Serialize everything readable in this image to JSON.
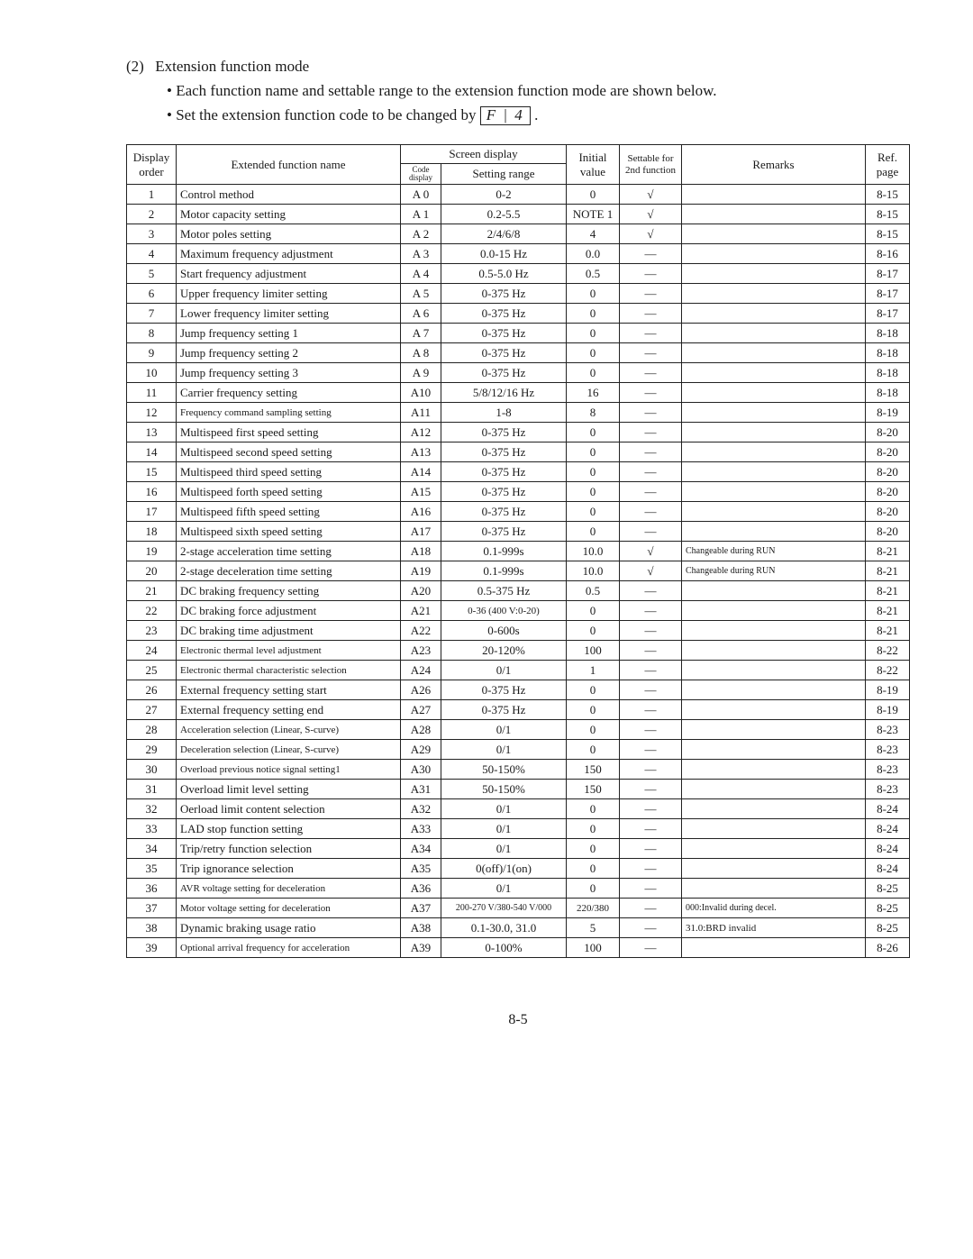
{
  "intro": {
    "heading_num": "(2)",
    "heading_text": "Extension function mode",
    "line1": "Each function name and settable range to the extension function mode are shown below.",
    "line2a": "Set the extension function code to be changed by",
    "codebox": "F | 4",
    "line2b": "."
  },
  "headers": {
    "display": "Display order",
    "name": "Extended function name",
    "screen": "Screen display",
    "code": "Code display",
    "range": "Setting range",
    "initial": "Initial value",
    "settable": "Settable for 2nd function",
    "remarks": "Remarks",
    "ref": "Ref. page"
  },
  "rows": [
    {
      "n": "1",
      "name": "Control method",
      "code": "A 0",
      "range": "0-2",
      "init": "0",
      "set": "√",
      "rem": "",
      "ref": "8-15"
    },
    {
      "n": "2",
      "name": "Motor capacity setting",
      "code": "A 1",
      "range": "0.2-5.5",
      "init": "NOTE 1",
      "set": "√",
      "rem": "",
      "ref": "8-15"
    },
    {
      "n": "3",
      "name": "Motor poles setting",
      "code": "A 2",
      "range": "2/4/6/8",
      "init": "4",
      "set": "√",
      "rem": "",
      "ref": "8-15"
    },
    {
      "n": "4",
      "name": "Maximum frequency adjustment",
      "code": "A 3",
      "range": "0.0-15 Hz",
      "init": "0.0",
      "set": "—",
      "rem": "",
      "ref": "8-16"
    },
    {
      "n": "5",
      "name": "Start frequency adjustment",
      "code": "A 4",
      "range": "0.5-5.0 Hz",
      "init": "0.5",
      "set": "—",
      "rem": "",
      "ref": "8-17"
    },
    {
      "n": "6",
      "name": "Upper frequency limiter setting",
      "code": "A 5",
      "range": "0-375 Hz",
      "init": "0",
      "set": "—",
      "rem": "",
      "ref": "8-17"
    },
    {
      "n": "7",
      "name": "Lower frequency limiter setting",
      "code": "A 6",
      "range": "0-375 Hz",
      "init": "0",
      "set": "—",
      "rem": "",
      "ref": "8-17"
    },
    {
      "n": "8",
      "name": "Jump frequency setting 1",
      "code": "A 7",
      "range": "0-375 Hz",
      "init": "0",
      "set": "—",
      "rem": "",
      "ref": "8-18"
    },
    {
      "n": "9",
      "name": "Jump frequency setting 2",
      "code": "A 8",
      "range": "0-375 Hz",
      "init": "0",
      "set": "—",
      "rem": "",
      "ref": "8-18"
    },
    {
      "n": "10",
      "name": "Jump frequency setting 3",
      "code": "A 9",
      "range": "0-375 Hz",
      "init": "0",
      "set": "—",
      "rem": "",
      "ref": "8-18"
    },
    {
      "n": "11",
      "name": "Carrier frequency setting",
      "code": "A10",
      "range": "5/8/12/16 Hz",
      "init": "16",
      "set": "—",
      "rem": "",
      "ref": "8-18"
    },
    {
      "n": "12",
      "name": "Frequency command sampling setting",
      "code": "A11",
      "range": "1-8",
      "init": "8",
      "set": "—",
      "rem": "",
      "ref": "8-19",
      "nameClass": "small"
    },
    {
      "n": "13",
      "name": "Multispeed first speed setting",
      "code": "A12",
      "range": "0-375 Hz",
      "init": "0",
      "set": "—",
      "rem": "",
      "ref": "8-20"
    },
    {
      "n": "14",
      "name": "Multispeed second speed setting",
      "code": "A13",
      "range": "0-375 Hz",
      "init": "0",
      "set": "—",
      "rem": "",
      "ref": "8-20"
    },
    {
      "n": "15",
      "name": "Multispeed third speed setting",
      "code": "A14",
      "range": "0-375 Hz",
      "init": "0",
      "set": "—",
      "rem": "",
      "ref": "8-20"
    },
    {
      "n": "16",
      "name": "Multispeed forth speed setting",
      "code": "A15",
      "range": "0-375 Hz",
      "init": "0",
      "set": "—",
      "rem": "",
      "ref": "8-20"
    },
    {
      "n": "17",
      "name": "Multispeed fifth speed setting",
      "code": "A16",
      "range": "0-375 Hz",
      "init": "0",
      "set": "—",
      "rem": "",
      "ref": "8-20"
    },
    {
      "n": "18",
      "name": "Multispeed sixth speed setting",
      "code": "A17",
      "range": "0-375 Hz",
      "init": "0",
      "set": "—",
      "rem": "",
      "ref": "8-20"
    },
    {
      "n": "19",
      "name": "2-stage acceleration time setting",
      "code": "A18",
      "range": "0.1-999s",
      "init": "10.0",
      "set": "√",
      "rem": "Changeable during RUN",
      "ref": "8-21",
      "remClass": "tiny"
    },
    {
      "n": "20",
      "name": "2-stage deceleration time setting",
      "code": "A19",
      "range": "0.1-999s",
      "init": "10.0",
      "set": "√",
      "rem": "Changeable during RUN",
      "ref": "8-21",
      "remClass": "tiny"
    },
    {
      "n": "21",
      "name": "DC braking frequency setting",
      "code": "A20",
      "range": "0.5-375 Hz",
      "init": "0.5",
      "set": "—",
      "rem": "",
      "ref": "8-21"
    },
    {
      "n": "22",
      "name": "DC braking force adjustment",
      "code": "A21",
      "range": "0-36 (400 V:0-20)",
      "init": "0",
      "set": "—",
      "rem": "",
      "ref": "8-21",
      "rangeClass": "small"
    },
    {
      "n": "23",
      "name": "DC braking time adjustment",
      "code": "A22",
      "range": "0-600s",
      "init": "0",
      "set": "—",
      "rem": "",
      "ref": "8-21"
    },
    {
      "n": "24",
      "name": "Electronic thermal level adjustment",
      "code": "A23",
      "range": "20-120%",
      "init": "100",
      "set": "—",
      "rem": "",
      "ref": "8-22",
      "nameClass": "small"
    },
    {
      "n": "25",
      "name": "Electronic thermal characteristic selection",
      "code": "A24",
      "range": "0/1",
      "init": "1",
      "set": "—",
      "rem": "",
      "ref": "8-22",
      "nameClass": "small"
    },
    {
      "n": "26",
      "name": "External frequency setting start",
      "code": "A26",
      "range": "0-375 Hz",
      "init": "0",
      "set": "—",
      "rem": "",
      "ref": "8-19"
    },
    {
      "n": "27",
      "name": "External frequency setting end",
      "code": "A27",
      "range": "0-375 Hz",
      "init": "0",
      "set": "—",
      "rem": "",
      "ref": "8-19"
    },
    {
      "n": "28",
      "name": "Acceleration selection (Linear, S-curve)",
      "code": "A28",
      "range": "0/1",
      "init": "0",
      "set": "—",
      "rem": "",
      "ref": "8-23",
      "nameClass": "small"
    },
    {
      "n": "29",
      "name": "Deceleration selection (Linear, S-curve)",
      "code": "A29",
      "range": "0/1",
      "init": "0",
      "set": "—",
      "rem": "",
      "ref": "8-23",
      "nameClass": "small"
    },
    {
      "n": "30",
      "name": "Overload previous notice signal setting1",
      "code": "A30",
      "range": "50-150%",
      "init": "150",
      "set": "—",
      "rem": "",
      "ref": "8-23",
      "nameClass": "small"
    },
    {
      "n": "31",
      "name": "Overload limit level setting",
      "code": "A31",
      "range": "50-150%",
      "init": "150",
      "set": "—",
      "rem": "",
      "ref": "8-23"
    },
    {
      "n": "32",
      "name": "Oerload limit content selection",
      "code": "A32",
      "range": "0/1",
      "init": "0",
      "set": "—",
      "rem": "",
      "ref": "8-24"
    },
    {
      "n": "33",
      "name": "LAD stop function setting",
      "code": "A33",
      "range": "0/1",
      "init": "0",
      "set": "—",
      "rem": "",
      "ref": "8-24"
    },
    {
      "n": "34",
      "name": "Trip/retry function selection",
      "code": "A34",
      "range": "0/1",
      "init": "0",
      "set": "—",
      "rem": "",
      "ref": "8-24"
    },
    {
      "n": "35",
      "name": "Trip ignorance selection",
      "code": "A35",
      "range": "0(off)/1(on)",
      "init": "0",
      "set": "—",
      "rem": "",
      "ref": "8-24"
    },
    {
      "n": "36",
      "name": "AVR voltage setting for deceleration",
      "code": "A36",
      "range": "0/1",
      "init": "0",
      "set": "—",
      "rem": "",
      "ref": "8-25",
      "nameClass": "small"
    },
    {
      "n": "37",
      "name": "Motor voltage setting for deceleration",
      "code": "A37",
      "range": "200-270 V/380-540 V/000",
      "init": "220/380",
      "set": "—",
      "rem": "000:Invalid during decel.",
      "ref": "8-25",
      "nameClass": "small",
      "rangeClass": "tiny",
      "remClass": "tiny",
      "initClass": "small"
    },
    {
      "n": "38",
      "name": "Dynamic braking usage ratio",
      "code": "A38",
      "range": "0.1-30.0, 31.0",
      "init": "5",
      "set": "—",
      "rem": "31.0:BRD invalid",
      "ref": "8-25",
      "remClass": "small"
    },
    {
      "n": "39",
      "name": "Optional arrival frequency for acceleration",
      "code": "A39",
      "range": "0-100%",
      "init": "100",
      "set": "—",
      "rem": "",
      "ref": "8-26",
      "nameClass": "small"
    }
  ],
  "footer": "8-5"
}
